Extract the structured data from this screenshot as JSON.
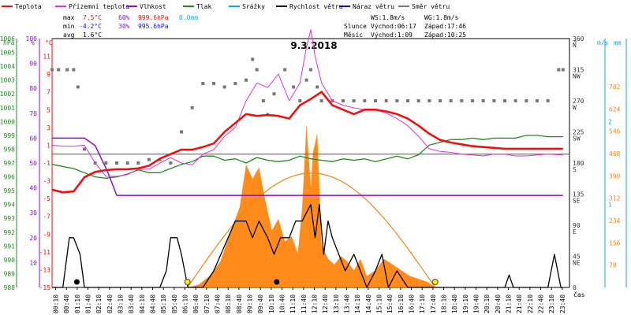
{
  "legend": [
    {
      "label": "Teplota",
      "color": "#ee1111"
    },
    {
      "label": "Přízemní teplota",
      "color": "#dd33dd"
    },
    {
      "label": "Vlhkost",
      "color": "#8811cc"
    },
    {
      "label": "Tlak",
      "color": "#228822"
    },
    {
      "label": "Srážky",
      "color": "#11aadd"
    },
    {
      "label": "Rychlost větru",
      "color": "#000000"
    },
    {
      "label": "Náraz větru",
      "color": "#1111aa"
    },
    {
      "label": "Směr větru",
      "color": "#777777"
    }
  ],
  "stats": {
    "max": {
      "label": "max",
      "temp": "7.5°C",
      "hum": "60%",
      "press": "999.6hPa",
      "rain": "0.0mm"
    },
    "min": {
      "label": "min",
      "temp": "-4.2°C",
      "hum": "30%",
      "press": "995.6hPa"
    },
    "avg": {
      "label": "avg",
      "temp": "1.6°C"
    }
  },
  "info": {
    "ws": "WS:1.8m/s",
    "wg": "WG:1.8m/s",
    "sun_label": "Slunce",
    "sun_rise": "Východ:06:17",
    "sun_set": "Západ:17:46",
    "moon_label": "Měsíc",
    "moon_rise": "Východ:1:09",
    "moon_set": "Západ:10:25"
  },
  "axes_titles": {
    "hpa": "hPa",
    "pct": "%",
    "degc": "°C",
    "deg": "°",
    "ms": "m/s",
    "mm": "mm",
    "cas": "čas"
  },
  "colors": {
    "temp": "#ee1111",
    "ground": "#dd33dd",
    "hum": "#8811cc",
    "press": "#228822",
    "rain": "#11aadd",
    "wind": "#000000",
    "gust": "#1111aa",
    "dir": "#777777",
    "sun": "#ee8811",
    "sunfill": "#ff8c1a",
    "zero": "#555555"
  },
  "chart_data": {
    "type": "line",
    "title": "9.3.2018",
    "x_ticks": [
      "00:10",
      "00:40",
      "01:10",
      "01:40",
      "02:10",
      "02:40",
      "03:10",
      "03:40",
      "04:10",
      "04:40",
      "05:10",
      "05:40",
      "06:10",
      "06:40",
      "07:10",
      "07:40",
      "08:10",
      "08:40",
      "09:10",
      "09:40",
      "10:10",
      "10:40",
      "11:10",
      "11:40",
      "12:10",
      "12:40",
      "13:10",
      "13:40",
      "14:10",
      "14:40",
      "15:10",
      "15:40",
      "16:10",
      "16:40",
      "17:10",
      "17:40",
      "18:10",
      "18:40",
      "19:10",
      "19:40",
      "20:10",
      "20:40",
      "21:10",
      "21:40",
      "22:10",
      "22:40",
      "23:10",
      "23:40"
    ],
    "axes": {
      "hpa": {
        "ticks": [
          "988",
          "989",
          "990",
          "991",
          "992",
          "993",
          "994",
          "995",
          "996",
          "997",
          "998",
          "999",
          "1000",
          "1001",
          "1002",
          "1003",
          "1004",
          "1005",
          "1006"
        ],
        "ylim": [
          988,
          1006
        ]
      },
      "pct": {
        "ticks": [
          "10",
          "20",
          "30",
          "40",
          "50",
          "60",
          "70",
          "80",
          "90",
          "100"
        ],
        "ylim": [
          0,
          100
        ]
      },
      "degc": {
        "ticks": [
          "-15",
          "-13",
          "-11",
          "-9",
          "-7",
          "-5",
          "-3",
          "-1",
          "1",
          "3",
          "5",
          "7",
          "9",
          "11"
        ],
        "ylim": [
          -15,
          13
        ]
      },
      "dir": {
        "ticks": [
          "0",
          "45",
          "90",
          "135",
          "180",
          "225",
          "270",
          "315",
          "360"
        ],
        "labels": [
          "",
          "NE",
          "E",
          "SE",
          "S",
          "SW",
          "W",
          "NW",
          "N"
        ],
        "ylim": [
          0,
          360
        ]
      },
      "ms": {
        "ticks": [
          "1",
          "2"
        ],
        "ylim": [
          0,
          3
        ]
      },
      "rad": {
        "ticks": [
          "78",
          "156",
          "234",
          "312",
          "390",
          "468",
          "546",
          "624",
          "702"
        ],
        "ylim": [
          0,
          870
        ]
      }
    },
    "series": [
      {
        "key": "temp",
        "name": "Teplota",
        "x": [
          0,
          0.5,
          1,
          1.5,
          2,
          2.5,
          3,
          3.5,
          4,
          4.5,
          5,
          5.5,
          6,
          6.5,
          7,
          7.5,
          8,
          8.5,
          9,
          9.5,
          10,
          10.5,
          11,
          11.5,
          12,
          12.5,
          13,
          13.5,
          14,
          14.5,
          15,
          15.5,
          16,
          16.5,
          17,
          17.5,
          18,
          18.5,
          19,
          19.5,
          20,
          20.5,
          21,
          21.5,
          22,
          22.5,
          23,
          23.7
        ],
        "values": [
          -4,
          -4.3,
          -4.2,
          -2.6,
          -2,
          -1.8,
          -1.7,
          -1.7,
          -1.6,
          -1.3,
          -0.5,
          0,
          0.5,
          0.5,
          0.8,
          1.2,
          2.5,
          3.5,
          4.5,
          4.3,
          4.4,
          4.3,
          4.0,
          5.5,
          6.2,
          7.0,
          5.5,
          5.0,
          4.5,
          5.0,
          5.0,
          4.8,
          4.5,
          4.0,
          3.2,
          2.3,
          1.6,
          1.3,
          1.1,
          0.9,
          0.8,
          0.7,
          0.6,
          0.6,
          0.6,
          0.6,
          0.6,
          0.6
        ]
      },
      {
        "key": "ground",
        "name": "Přízemní teplota",
        "x": [
          0,
          0.5,
          1,
          1.5,
          2,
          2.5,
          3,
          3.5,
          4,
          4.5,
          5,
          5.5,
          6,
          6.5,
          7,
          7.5,
          8,
          8.5,
          9,
          9.5,
          10,
          10.5,
          11,
          11.5,
          11.8,
          12,
          12.2,
          12.5,
          13,
          13.5,
          14,
          14.5,
          15,
          15.5,
          16,
          16.5,
          17,
          17.5,
          18,
          18.5,
          19,
          19.5,
          20,
          20.5,
          21,
          21.5,
          22,
          22.5,
          23,
          23.7
        ],
        "values": [
          1,
          0.9,
          0.9,
          1,
          -1,
          -2.5,
          -2.5,
          -2.3,
          -1.7,
          -1.7,
          -1,
          -0.4,
          -1,
          -1.2,
          0,
          0.5,
          2,
          3,
          6,
          8,
          7.5,
          9,
          6,
          8,
          12,
          14,
          11,
          8,
          6,
          5.5,
          5.2,
          5,
          5,
          4.6,
          4,
          3.2,
          2,
          0.6,
          0.3,
          0.2,
          0,
          -0.1,
          -0.2,
          0,
          0,
          -0.2,
          -0.2,
          -0.1,
          0,
          -0.1
        ]
      },
      {
        "key": "hum",
        "name": "Vlhkost",
        "x": [
          0,
          1.5,
          2,
          2.6,
          3,
          4,
          6,
          8,
          10,
          12,
          14,
          16,
          18,
          20,
          22,
          23.7
        ],
        "values": [
          60,
          60,
          57,
          46,
          37,
          37,
          37,
          37,
          37,
          37,
          37,
          37,
          37,
          37,
          37,
          37
        ]
      },
      {
        "key": "press",
        "name": "Tlak",
        "x": [
          0,
          1,
          1.5,
          2,
          2.5,
          3,
          3.5,
          4,
          4.5,
          5,
          5.5,
          6,
          6.5,
          7,
          7.5,
          8,
          8.5,
          9,
          9.5,
          10,
          10.5,
          11,
          11.5,
          12,
          12.5,
          13,
          13.5,
          14,
          14.5,
          15,
          15.5,
          16,
          16.5,
          17,
          17.5,
          18,
          18.5,
          19,
          19.5,
          20,
          20.5,
          21,
          21.5,
          22,
          22.5,
          23,
          23.7
        ],
        "values": [
          996.9,
          996.6,
          996.3,
          996.0,
          995.9,
          996.0,
          996.2,
          996.5,
          996.3,
          996.3,
          996.6,
          996.9,
          997.1,
          997.5,
          997.5,
          997.2,
          997.3,
          997.0,
          997.4,
          997.2,
          997.1,
          997.2,
          997.5,
          997.3,
          997.2,
          997.1,
          997.3,
          997.2,
          997.3,
          997.1,
          997.3,
          997.5,
          997.3,
          997.6,
          998.3,
          998.5,
          998.7,
          998.7,
          998.8,
          998.7,
          998.8,
          998.8,
          998.8,
          999.0,
          999.0,
          998.9,
          998.9
        ]
      },
      {
        "key": "wind",
        "name": "Rychlost větru",
        "x": [
          0,
          0.5,
          0.8,
          1.0,
          1.3,
          1.5,
          1.7,
          2.0,
          2.5,
          3,
          3.5,
          4,
          4.5,
          5.0,
          5.3,
          5.5,
          5.8,
          6.0,
          6.3,
          6.5,
          7.0,
          7.5,
          8.0,
          8.5,
          9.0,
          9.3,
          9.6,
          10.0,
          10.3,
          10.6,
          11.0,
          11.3,
          11.6,
          12.0,
          12.2,
          12.4,
          12.6,
          12.8,
          13.0,
          13.3,
          13.6,
          14.0,
          14.3,
          14.6,
          15.0,
          15.3,
          15.6,
          16.0,
          16.5,
          17,
          17.5,
          18,
          19,
          20,
          21,
          21.2,
          21.4,
          22,
          23,
          23.3,
          23.6,
          23.7
        ],
        "values": [
          0,
          0,
          0.6,
          0.6,
          0.4,
          0,
          0,
          0,
          0,
          0,
          0,
          0,
          0,
          0,
          0.2,
          0.6,
          0.6,
          0.4,
          0,
          0,
          0,
          0.2,
          0.5,
          0.8,
          0.8,
          0.6,
          0.8,
          0.6,
          0.4,
          0.6,
          0.6,
          0.8,
          0.8,
          1.0,
          0.6,
          1.0,
          0.4,
          0.8,
          0.6,
          0.4,
          0.2,
          0.4,
          0.2,
          0,
          0.2,
          0.4,
          0,
          0.2,
          0,
          0,
          0,
          0,
          0,
          0,
          0,
          0.15,
          0,
          0,
          0,
          0.4,
          0,
          0
        ]
      },
      {
        "key": "rad",
        "name": "",
        "x": [
          6.3,
          6.8,
          7.3,
          7.8,
          8.3,
          8.7,
          9.0,
          9.3,
          9.6,
          9.9,
          10.2,
          10.5,
          10.8,
          11.1,
          11.4,
          11.6,
          11.8,
          12.0,
          12.1,
          12.3,
          12.5,
          12.8,
          13.1,
          13.4,
          13.7,
          14.0,
          14.3,
          14.6,
          15.0,
          15.4,
          15.8,
          16.2,
          16.6,
          17.0,
          17.4,
          17.8
        ],
        "values": [
          0,
          10,
          40,
          90,
          200,
          280,
          430,
          380,
          420,
          300,
          200,
          240,
          160,
          180,
          120,
          280,
          570,
          350,
          470,
          540,
          150,
          100,
          80,
          110,
          90,
          60,
          100,
          40,
          60,
          100,
          80,
          60,
          40,
          30,
          20,
          0
        ]
      },
      {
        "key": "dir",
        "name": "Směr větru",
        "x": [
          0,
          0.3,
          0.7,
          1,
          1.2,
          1.5,
          2,
          2.5,
          3,
          3.5,
          4,
          4.5,
          5,
          5.5,
          6,
          6.5,
          7,
          7.5,
          8,
          8.5,
          9,
          9.3,
          9.5,
          9.8,
          10,
          10.3,
          10.8,
          11.2,
          11.5,
          11.8,
          12,
          12.3,
          12.5,
          13,
          13.5,
          14,
          14.5,
          15,
          15.5,
          16,
          16.5,
          17,
          17.5,
          18,
          18.5,
          19,
          19.5,
          20,
          20.5,
          21,
          21.5,
          22,
          22.5,
          23,
          23.5,
          23.7
        ],
        "values": [
          315,
          315,
          315,
          315,
          290,
          200,
          180,
          180,
          180,
          180,
          180,
          185,
          185,
          180,
          225,
          260,
          295,
          295,
          290,
          295,
          300,
          330,
          315,
          270,
          250,
          280,
          315,
          290,
          270,
          300,
          315,
          290,
          270,
          270,
          270,
          270,
          270,
          270,
          270,
          270,
          270,
          270,
          270,
          270,
          270,
          270,
          270,
          270,
          270,
          270,
          270,
          270,
          270,
          270,
          315,
          315
        ]
      }
    ],
    "sun_curve": {
      "rise": 6.28,
      "set": 17.77,
      "peak": 400
    }
  }
}
